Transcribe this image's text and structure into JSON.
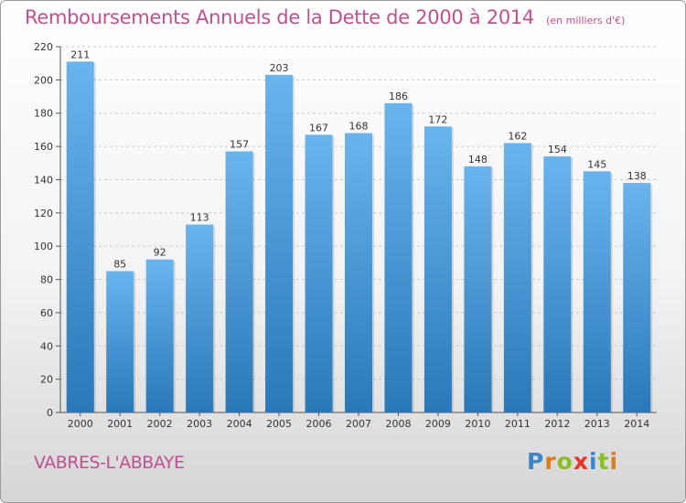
{
  "title": "Remboursements Annuels de la Dette de 2000 à 2014",
  "unit": "(en milliers d'€)",
  "place": "VABRES-L'ABBAYE",
  "logo": {
    "text": "Proxiti",
    "colors": [
      "#3a86c8",
      "#e07a1f",
      "#8bbd2b",
      "#e2342b",
      "#3a86c8",
      "#8bbd2b",
      "#e07a1f"
    ]
  },
  "colors": {
    "bar_light": "#6ab4ee",
    "bar_dark": "#2a78b8",
    "text_accent": "#c0508f"
  },
  "chart_data": {
    "type": "bar",
    "categories": [
      "2000",
      "2001",
      "2002",
      "2003",
      "2004",
      "2005",
      "2006",
      "2007",
      "2008",
      "2009",
      "2010",
      "2011",
      "2012",
      "2013",
      "2014"
    ],
    "values": [
      211,
      85,
      92,
      113,
      157,
      203,
      167,
      168,
      186,
      172,
      148,
      162,
      154,
      145,
      138
    ],
    "ylim": [
      0,
      220
    ],
    "yticks": [
      0,
      20,
      40,
      60,
      80,
      100,
      120,
      140,
      160,
      180,
      200,
      220
    ],
    "grid": true,
    "data_labels": true
  }
}
